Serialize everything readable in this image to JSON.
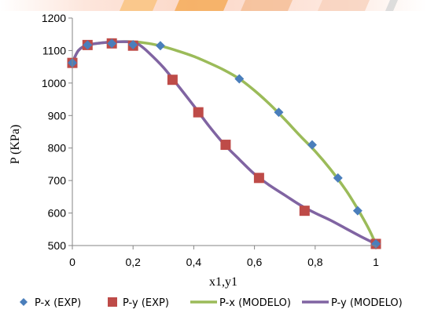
{
  "chart_data": {
    "type": "scatter",
    "xlabel": "x1,y1",
    "ylabel": "P (KPa)",
    "xlim": [
      0,
      1
    ],
    "ylim": [
      500,
      1200
    ],
    "x_ticks": [
      "0",
      "0,2",
      "0,4",
      "0,6",
      "0,8",
      "1"
    ],
    "y_ticks": [
      "500",
      "600",
      "700",
      "800",
      "900",
      "1000",
      "1100",
      "1200"
    ],
    "grid": false,
    "legend_position": "bottom",
    "series": [
      {
        "name": "P-x (EXP)",
        "kind": "marker",
        "marker": "diamond",
        "color": "#4a7ebb",
        "points": [
          [
            0,
            1062
          ],
          [
            0.05,
            1117
          ],
          [
            0.13,
            1122
          ],
          [
            0.2,
            1118
          ],
          [
            0.29,
            1115
          ],
          [
            0.55,
            1013
          ],
          [
            0.68,
            910
          ],
          [
            0.79,
            810
          ],
          [
            0.875,
            708
          ],
          [
            0.94,
            607
          ],
          [
            1,
            505
          ]
        ]
      },
      {
        "name": "P-y (EXP)",
        "kind": "marker",
        "marker": "square",
        "color": "#be4b48",
        "points": [
          [
            0,
            1062
          ],
          [
            0.05,
            1117
          ],
          [
            0.13,
            1122
          ],
          [
            0.2,
            1115
          ],
          [
            0.33,
            1010
          ],
          [
            0.415,
            910
          ],
          [
            0.505,
            810
          ],
          [
            0.615,
            708
          ],
          [
            0.765,
            607
          ],
          [
            1,
            505
          ]
        ]
      },
      {
        "name": "P-x (MODELO)",
        "kind": "line",
        "color": "#9bbb59",
        "points": [
          [
            0,
            1062
          ],
          [
            0.02,
            1100
          ],
          [
            0.05,
            1117
          ],
          [
            0.1,
            1124
          ],
          [
            0.15,
            1127
          ],
          [
            0.2,
            1127
          ],
          [
            0.25,
            1122
          ],
          [
            0.3,
            1112
          ],
          [
            0.35,
            1098
          ],
          [
            0.4,
            1082
          ],
          [
            0.45,
            1062
          ],
          [
            0.5,
            1040
          ],
          [
            0.55,
            1013
          ],
          [
            0.6,
            977
          ],
          [
            0.65,
            935
          ],
          [
            0.7,
            888
          ],
          [
            0.75,
            838
          ],
          [
            0.8,
            790
          ],
          [
            0.85,
            735
          ],
          [
            0.9,
            672
          ],
          [
            0.93,
            628
          ],
          [
            0.96,
            580
          ],
          [
            0.98,
            545
          ],
          [
            1,
            505
          ]
        ]
      },
      {
        "name": "P-y (MODELO)",
        "kind": "line",
        "color": "#8064a2",
        "points": [
          [
            0,
            1062
          ],
          [
            0.02,
            1100
          ],
          [
            0.05,
            1117
          ],
          [
            0.1,
            1124
          ],
          [
            0.15,
            1127
          ],
          [
            0.2,
            1126
          ],
          [
            0.22,
            1118
          ],
          [
            0.25,
            1095
          ],
          [
            0.3,
            1048
          ],
          [
            0.35,
            990
          ],
          [
            0.4,
            930
          ],
          [
            0.45,
            868
          ],
          [
            0.5,
            812
          ],
          [
            0.55,
            765
          ],
          [
            0.6,
            720
          ],
          [
            0.65,
            685
          ],
          [
            0.7,
            655
          ],
          [
            0.75,
            625
          ],
          [
            0.8,
            600
          ],
          [
            0.85,
            578
          ],
          [
            0.9,
            553
          ],
          [
            0.95,
            528
          ],
          [
            1,
            505
          ]
        ]
      }
    ]
  },
  "colors": {
    "banner_left": "#fde9e0",
    "banner_accent": "#f7a21a",
    "axis": "#868686"
  }
}
